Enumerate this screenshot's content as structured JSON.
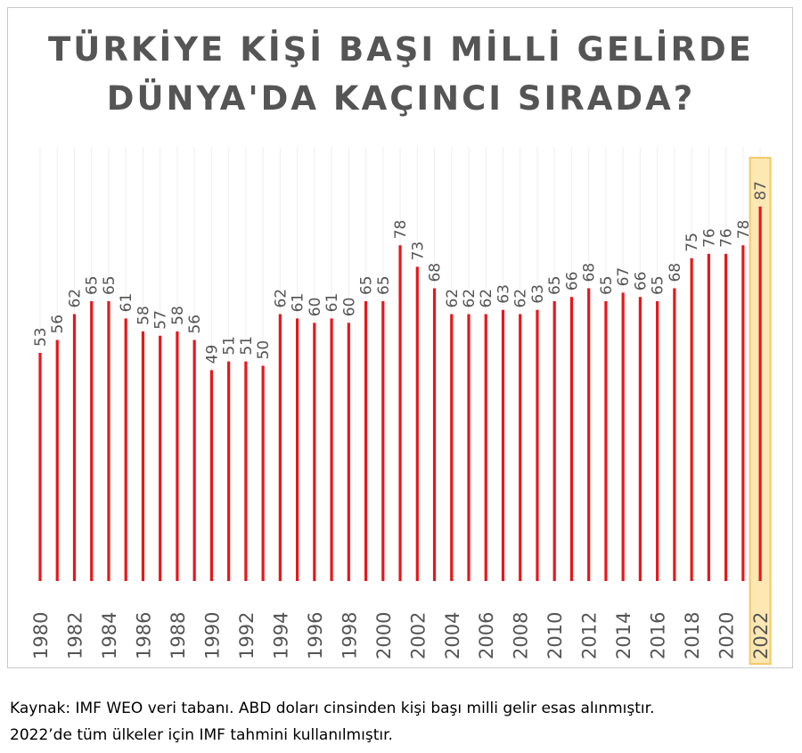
{
  "chart_data": {
    "type": "bar",
    "title_lines": [
      "TÜRKİYE KİŞİ BAŞI MİLLİ GELİRDE",
      "DÜNYA'DA KAÇINCI SIRADA?"
    ],
    "categories": [
      1980,
      1981,
      1982,
      1983,
      1984,
      1985,
      1986,
      1987,
      1988,
      1989,
      1990,
      1991,
      1992,
      1993,
      1994,
      1995,
      1996,
      1997,
      1998,
      1999,
      2000,
      2001,
      2002,
      2003,
      2004,
      2005,
      2006,
      2007,
      2008,
      2009,
      2010,
      2011,
      2012,
      2013,
      2014,
      2015,
      2016,
      2017,
      2018,
      2019,
      2020,
      2021,
      2022
    ],
    "values": [
      53,
      56,
      62,
      65,
      65,
      61,
      58,
      57,
      58,
      56,
      49,
      51,
      51,
      50,
      62,
      61,
      60,
      61,
      60,
      65,
      65,
      78,
      73,
      68,
      62,
      62,
      62,
      63,
      62,
      63,
      65,
      66,
      68,
      65,
      67,
      66,
      65,
      68,
      75,
      76,
      76,
      78,
      87
    ],
    "tick_labels": [
      "1980",
      "1982",
      "1984",
      "1986",
      "1988",
      "1990",
      "1992",
      "1994",
      "1996",
      "1998",
      "2000",
      "2002",
      "2004",
      "2006",
      "2008",
      "2010",
      "2012",
      "2014",
      "2016",
      "2018",
      "2020",
      "2022"
    ],
    "highlight_category": 2022,
    "bar_color": "#e8171a",
    "highlight_fill": "#fde7b3",
    "highlight_border": "#f3c969",
    "label_color": "#555555",
    "grid": true,
    "legend": "none"
  },
  "source_note": {
    "line1": "Kaynak: IMF WEO veri tabanı. ABD doları cinsinden kişi başı milli gelir esas alınmıştır.",
    "line2": "2022’de tüm ülkeler için IMF tahmini kullanılmıştır."
  }
}
